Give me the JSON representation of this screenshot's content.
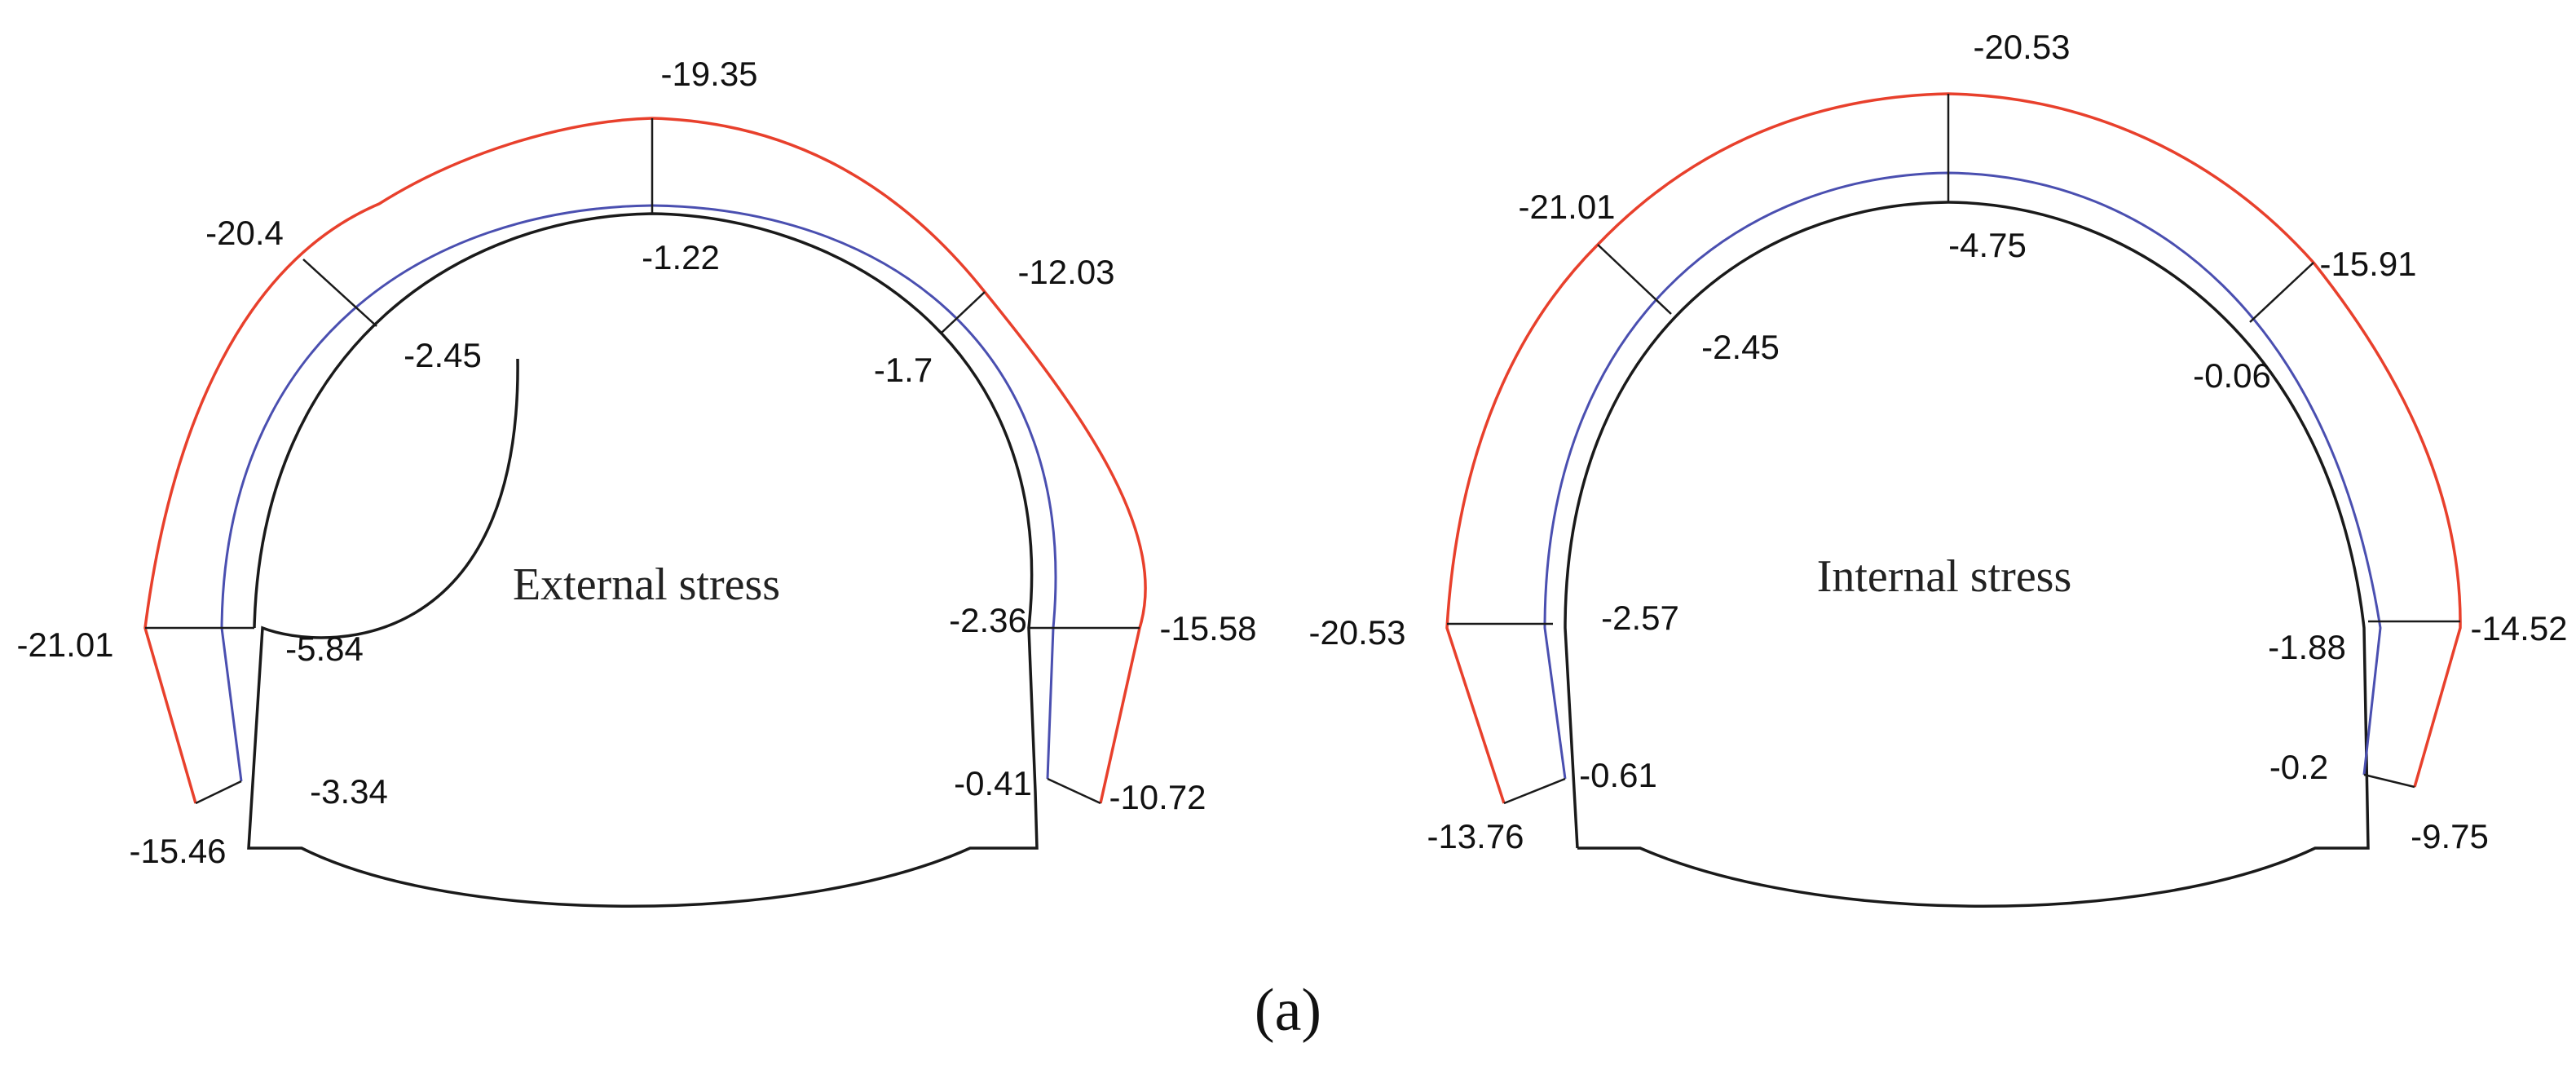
{
  "caption": "(a)",
  "panels": [
    {
      "id": "external",
      "title": "External stress",
      "values": {
        "crown_outer": "-19.35",
        "crown_inner": "-1.22",
        "left_shoulder_outer": "-20.4",
        "left_shoulder_inner": "-2.45",
        "right_shoulder_outer": "-12.03",
        "right_shoulder_inner": "-1.7",
        "left_wall_outer": "-21.01",
        "left_wall_inner": "-5.84",
        "right_wall_outer": "-15.58",
        "right_wall_inner": "-2.36",
        "left_foot_outer": "-15.46",
        "left_foot_inner": "-3.34",
        "right_foot_outer": "-10.72",
        "right_foot_inner": "-0.41"
      }
    },
    {
      "id": "internal",
      "title": "Internal stress",
      "values": {
        "crown_outer": "-20.53",
        "crown_inner": "-4.75",
        "left_shoulder_outer": "-21.01",
        "left_shoulder_inner": "-2.45",
        "right_shoulder_outer": "-15.91",
        "right_shoulder_inner": "-0.06",
        "left_wall_outer": "-20.53",
        "left_wall_inner": "-2.57",
        "right_wall_outer": "-14.52",
        "right_wall_inner": "-1.88",
        "left_foot_outer": "-13.76",
        "left_foot_inner": "-0.61",
        "right_foot_outer": "-9.75",
        "right_foot_inner": "-0.2"
      }
    }
  ]
}
